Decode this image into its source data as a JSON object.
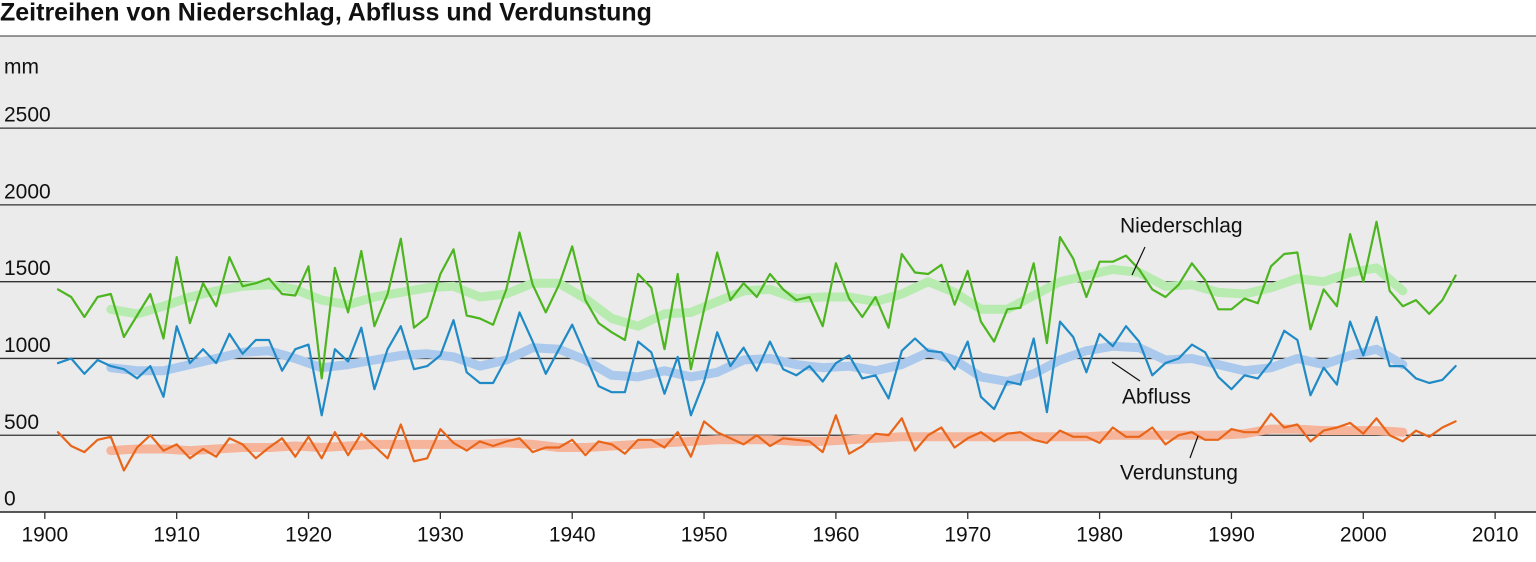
{
  "chart_data": {
    "type": "line",
    "title": "Zeitreihen von Niederschlag, Abfluss und Verdunstung",
    "y_label": "mm",
    "xlim": [
      1896.6,
      2013.1
    ],
    "ylim": [
      0,
      3100
    ],
    "xticks": [
      1900,
      1910,
      1920,
      1930,
      1940,
      1950,
      1960,
      1970,
      1980,
      1990,
      2000,
      2010
    ],
    "yticks": [
      0,
      500,
      1000,
      1500,
      2000,
      2500
    ],
    "grid": true,
    "x": [
      1901,
      1902,
      1903,
      1904,
      1905,
      1906,
      1907,
      1908,
      1909,
      1910,
      1911,
      1912,
      1913,
      1914,
      1915,
      1916,
      1917,
      1918,
      1919,
      1920,
      1921,
      1922,
      1923,
      1924,
      1925,
      1926,
      1927,
      1928,
      1929,
      1930,
      1931,
      1932,
      1933,
      1934,
      1935,
      1936,
      1937,
      1938,
      1939,
      1940,
      1941,
      1942,
      1943,
      1944,
      1945,
      1946,
      1947,
      1948,
      1949,
      1950,
      1951,
      1952,
      1953,
      1954,
      1955,
      1956,
      1957,
      1958,
      1959,
      1960,
      1961,
      1962,
      1963,
      1964,
      1965,
      1966,
      1967,
      1968,
      1969,
      1970,
      1971,
      1972,
      1973,
      1974,
      1975,
      1976,
      1977,
      1978,
      1979,
      1980,
      1981,
      1982,
      1983,
      1984,
      1985,
      1986,
      1987,
      1988,
      1989,
      1990,
      1991,
      1992,
      1993,
      1994,
      1995,
      1996,
      1997,
      1998,
      1999,
      2000,
      2001,
      2002,
      2003,
      2004,
      2005,
      2006,
      2007
    ],
    "series": [
      {
        "color": "#b8ebb0",
        "width": 9,
        "x": [
          1905,
          1907,
          1909,
          1911,
          1913,
          1915,
          1917,
          1919,
          1921,
          1923,
          1925,
          1927,
          1929,
          1931,
          1933,
          1935,
          1937,
          1939,
          1941,
          1943,
          1945,
          1947,
          1949,
          1951,
          1953,
          1955,
          1957,
          1959,
          1961,
          1963,
          1965,
          1967,
          1969,
          1971,
          1973,
          1975,
          1977,
          1979,
          1981,
          1983,
          1985,
          1987,
          1989,
          1991,
          1993,
          1995,
          1997,
          1999,
          2001,
          2003
        ],
        "values": [
          1320,
          1290,
          1340,
          1400,
          1440,
          1470,
          1480,
          1450,
          1380,
          1350,
          1400,
          1430,
          1460,
          1470,
          1400,
          1420,
          1490,
          1490,
          1390,
          1260,
          1210,
          1290,
          1300,
          1370,
          1440,
          1450,
          1390,
          1400,
          1400,
          1370,
          1420,
          1500,
          1430,
          1320,
          1320,
          1410,
          1500,
          1540,
          1580,
          1560,
          1470,
          1480,
          1430,
          1420,
          1460,
          1520,
          1500,
          1560,
          1590,
          1440
        ]
      },
      {
        "color": "#aac9ec",
        "width": 9,
        "x": [
          1905,
          1907,
          1909,
          1911,
          1913,
          1915,
          1917,
          1919,
          1921,
          1923,
          1925,
          1927,
          1929,
          1931,
          1933,
          1935,
          1937,
          1939,
          1941,
          1943,
          1945,
          1947,
          1949,
          1951,
          1953,
          1955,
          1957,
          1959,
          1961,
          1963,
          1965,
          1967,
          1969,
          1971,
          1973,
          1975,
          1977,
          1979,
          1981,
          1983,
          1985,
          1987,
          1989,
          1991,
          1993,
          1995,
          1997,
          1999,
          2001,
          2003
        ],
        "values": [
          940,
          920,
          920,
          960,
          1000,
          1040,
          1050,
          1000,
          940,
          960,
          990,
          1020,
          1030,
          1010,
          950,
          990,
          1070,
          1060,
          990,
          890,
          880,
          920,
          880,
          910,
          990,
          1000,
          960,
          940,
          950,
          920,
          960,
          1040,
          990,
          880,
          850,
          900,
          990,
          1050,
          1080,
          1070,
          990,
          1000,
          960,
          920,
          940,
          1000,
          960,
          1020,
          1060,
          960
        ]
      },
      {
        "color": "#f6b49a",
        "width": 9,
        "x": [
          1905,
          1907,
          1909,
          1911,
          1913,
          1915,
          1917,
          1919,
          1921,
          1923,
          1925,
          1927,
          1929,
          1931,
          1933,
          1935,
          1937,
          1939,
          1941,
          1943,
          1945,
          1947,
          1949,
          1951,
          1953,
          1955,
          1957,
          1959,
          1961,
          1963,
          1965,
          1967,
          1969,
          1971,
          1973,
          1975,
          1977,
          1979,
          1981,
          1983,
          1985,
          1987,
          1989,
          1991,
          1993,
          1995,
          1997,
          1999,
          2001,
          2003
        ],
        "values": [
          400,
          410,
          410,
          400,
          410,
          420,
          420,
          430,
          420,
          430,
          440,
          440,
          440,
          440,
          440,
          450,
          440,
          420,
          420,
          430,
          440,
          450,
          460,
          470,
          470,
          470,
          460,
          460,
          470,
          480,
          490,
          490,
          490,
          490,
          490,
          490,
          490,
          490,
          500,
          500,
          500,
          500,
          500,
          510,
          540,
          540,
          530,
          530,
          530,
          520
        ]
      },
      {
        "name": "Niederschlag",
        "color": "#4db51f",
        "width": 2.2,
        "values": [
          1450,
          1400,
          1270,
          1400,
          1420,
          1140,
          1280,
          1420,
          1130,
          1660,
          1230,
          1490,
          1340,
          1660,
          1470,
          1490,
          1520,
          1420,
          1410,
          1600,
          870,
          1590,
          1300,
          1700,
          1210,
          1420,
          1780,
          1200,
          1270,
          1550,
          1710,
          1280,
          1260,
          1220,
          1450,
          1820,
          1480,
          1300,
          1480,
          1730,
          1380,
          1230,
          1170,
          1120,
          1550,
          1460,
          1060,
          1550,
          930,
          1320,
          1690,
          1380,
          1490,
          1400,
          1550,
          1450,
          1380,
          1400,
          1210,
          1620,
          1390,
          1270,
          1400,
          1200,
          1680,
          1560,
          1550,
          1610,
          1350,
          1570,
          1240,
          1110,
          1320,
          1330,
          1620,
          1100,
          1790,
          1650,
          1400,
          1630,
          1630,
          1670,
          1580,
          1450,
          1400,
          1480,
          1620,
          1510,
          1320,
          1320,
          1390,
          1360,
          1600,
          1680,
          1690,
          1190,
          1450,
          1340,
          1810,
          1500,
          1890,
          1440,
          1340,
          1380,
          1290,
          1380,
          1540
        ]
      },
      {
        "name": "Abfluss",
        "color": "#1f8ac6",
        "width": 2.2,
        "values": [
          970,
          1000,
          900,
          990,
          950,
          930,
          870,
          950,
          750,
          1210,
          970,
          1060,
          970,
          1160,
          1030,
          1120,
          1120,
          920,
          1060,
          1090,
          630,
          1060,
          980,
          1200,
          800,
          1060,
          1210,
          930,
          950,
          1020,
          1250,
          910,
          840,
          840,
          1000,
          1300,
          1110,
          900,
          1060,
          1220,
          1020,
          820,
          780,
          780,
          1110,
          1040,
          770,
          1010,
          630,
          850,
          1170,
          950,
          1070,
          920,
          1110,
          930,
          890,
          950,
          850,
          970,
          1020,
          870,
          890,
          740,
          1050,
          1130,
          1050,
          1040,
          930,
          1110,
          750,
          670,
          850,
          830,
          1130,
          650,
          1240,
          1140,
          910,
          1160,
          1080,
          1210,
          1110,
          890,
          970,
          1000,
          1090,
          1040,
          880,
          800,
          890,
          870,
          980,
          1180,
          1120,
          760,
          940,
          830,
          1240,
          1020,
          1270,
          950,
          950,
          870,
          840,
          860,
          950
        ]
      },
      {
        "name": "Verdunstung",
        "color": "#e8651a",
        "width": 2.2,
        "values": [
          520,
          430,
          390,
          470,
          490,
          270,
          420,
          500,
          400,
          440,
          350,
          410,
          360,
          480,
          440,
          350,
          420,
          480,
          360,
          490,
          350,
          520,
          370,
          510,
          430,
          350,
          570,
          330,
          350,
          540,
          450,
          400,
          460,
          430,
          460,
          480,
          390,
          420,
          420,
          470,
          370,
          460,
          440,
          380,
          470,
          470,
          420,
          520,
          360,
          590,
          520,
          480,
          440,
          500,
          430,
          480,
          470,
          460,
          390,
          630,
          380,
          430,
          510,
          500,
          610,
          400,
          500,
          550,
          420,
          480,
          520,
          460,
          510,
          520,
          470,
          450,
          530,
          490,
          490,
          450,
          550,
          490,
          490,
          550,
          440,
          500,
          520,
          470,
          470,
          540,
          520,
          520,
          640,
          550,
          570,
          460,
          530,
          550,
          580,
          510,
          610,
          500,
          460,
          530,
          490,
          550,
          590
        ]
      }
    ]
  }
}
